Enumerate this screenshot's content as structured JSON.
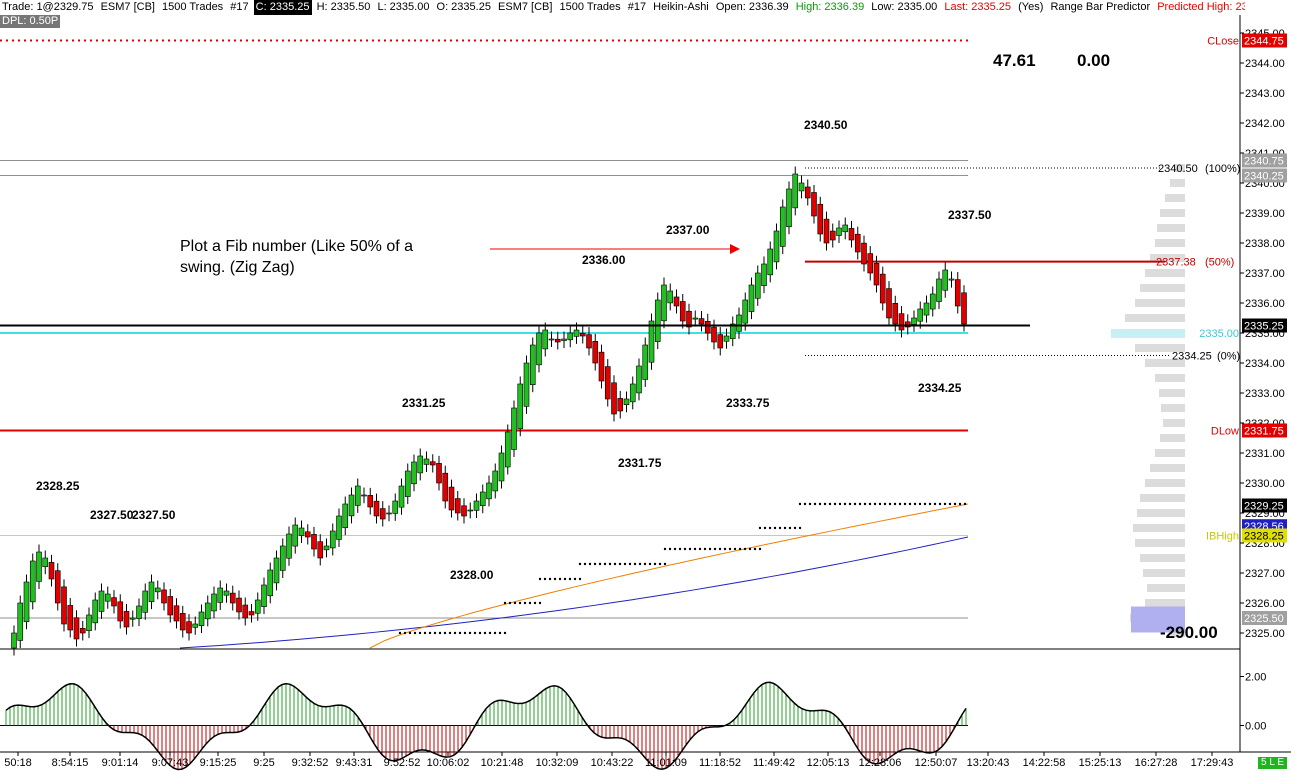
{
  "header": {
    "trade": "Trade: 1@2329.75",
    "symbol": "ESM7 [CB]",
    "trades": "1500 Trades",
    "study_no": "#17",
    "close": "C: 2335.25",
    "high": "H: 2335.50",
    "low": "L: 2335.00",
    "open": "O: 2335.25",
    "symbol2": "ESM7 [CB]",
    "trades2": "1500 Trades",
    "study2": "#17",
    "study_name": "Heikin-Ashi",
    "ha_open": "Open: 2336.39",
    "ha_high": "High: 2336.39",
    "ha_low": "Low: 2335.00",
    "ha_last": "Last: 2335.25",
    "yes": "(Yes)",
    "predictor": "Range Bar Predictor",
    "predicted": "Predicted High: 23"
  },
  "dpl": "DPL: 0.50P",
  "corner_badge": "5 L E",
  "colors": {
    "up": "#20c020",
    "down": "#e00000",
    "red_line": "#e00000",
    "cyan_line": "#40e0e0",
    "ibhigh": "#e0e000",
    "blue_ma": "#2020c0",
    "orange_ma": "#f08000",
    "price_black": "#000000",
    "axis_label_gray": "#a0a0a0",
    "profile": "#dcdcdc"
  },
  "chart_data": {
    "type": "candlestick",
    "chart_style": "Heikin-Ashi",
    "y_range": [
      2324.5,
      2345.5
    ],
    "x_labels": [
      "50:18",
      "8:54:15",
      "9:01:14",
      "9:07:43",
      "9:15:25",
      "9:25",
      "9:32:52",
      "9:43:31",
      "9:52:52",
      "10:06:02",
      "10:21:48",
      "10:32:09",
      "10:43:22",
      "11:01:09",
      "11:18:52",
      "11:49:42",
      "12:05:13",
      "12:28:06",
      "12:50:07",
      "13:20:43",
      "14:22:58",
      "15:25:13",
      "16:27:28",
      "17:29:43"
    ],
    "y_ticks": [
      "2325.00",
      "2326.00",
      "2327.00",
      "2328.00",
      "2329.00",
      "2330.00",
      "2331.00",
      "2332.00",
      "2333.00",
      "2334.00",
      "2335.00",
      "2336.00",
      "2337.00",
      "2338.00",
      "2339.00",
      "2340.00",
      "2341.00",
      "2342.00",
      "2343.00",
      "2344.00",
      "2345.00"
    ],
    "closes": [
      2325.0,
      2326.0,
      2326.7,
      2327.4,
      2327.7,
      2327.5,
      2326.8,
      2326.0,
      2325.3,
      2325.1,
      2324.8,
      2325.0,
      2325.6,
      2326.1,
      2326.4,
      2326.3,
      2325.9,
      2325.4,
      2325.2,
      2325.5,
      2325.9,
      2326.4,
      2326.7,
      2326.5,
      2326.0,
      2325.6,
      2325.4,
      2325.1,
      2325.0,
      2325.3,
      2325.7,
      2326.0,
      2326.3,
      2326.5,
      2326.4,
      2326.0,
      2325.7,
      2325.5,
      2325.6,
      2326.1,
      2326.6,
      2327.1,
      2327.5,
      2327.9,
      2328.3,
      2328.6,
      2328.5,
      2328.2,
      2327.8,
      2327.5,
      2327.9,
      2328.4,
      2328.9,
      2329.3,
      2329.6,
      2329.9,
      2329.6,
      2329.2,
      2328.9,
      2328.8,
      2329.0,
      2329.4,
      2329.9,
      2330.4,
      2330.7,
      2330.9,
      2330.8,
      2330.6,
      2330.0,
      2329.4,
      2329.1,
      2329.0,
      2328.9,
      2329.1,
      2329.4,
      2329.7,
      2330.0,
      2330.4,
      2331.0,
      2331.7,
      2332.5,
      2333.3,
      2334.0,
      2334.6,
      2335.0,
      2335.1,
      2334.8,
      2334.7,
      2334.8,
      2335.0,
      2335.1,
      2334.9,
      2334.5,
      2334.0,
      2333.4,
      2332.8,
      2332.3,
      2332.4,
      2332.8,
      2333.3,
      2333.9,
      2334.6,
      2335.4,
      2336.1,
      2336.6,
      2336.4,
      2335.9,
      2335.4,
      2335.2,
      2335.5,
      2335.3,
      2335.0,
      2334.7,
      2334.5,
      2334.9,
      2335.3,
      2335.6,
      2336.1,
      2336.6,
      2337.0,
      2337.3,
      2337.8,
      2338.4,
      2339.2,
      2339.8,
      2340.3,
      2340.0,
      2339.5,
      2338.9,
      2338.3,
      2338.0,
      2338.1,
      2338.5,
      2338.6,
      2338.1,
      2337.7,
      2337.3,
      2337.0,
      2336.6,
      2336.0,
      2335.5,
      2335.3,
      2335.1,
      2335.2,
      2335.5,
      2335.8,
      2336.0,
      2336.3,
      2336.8,
      2337.1,
      2336.8,
      2335.9,
      2335.3
    ],
    "horizontal_lines": [
      {
        "label": "CLose",
        "value": "2344.75",
        "style": "dotted"
      },
      {
        "label": "",
        "value": "2340.75"
      },
      {
        "label": "",
        "value": "2340.25"
      },
      {
        "label": "",
        "value": "2335.25"
      },
      {
        "label": "2335.00",
        "value": ""
      },
      {
        "label": "DLow",
        "value": "2331.75"
      },
      {
        "label": "",
        "value": "2329.25"
      },
      {
        "label": "",
        "value": "2328.56"
      },
      {
        "label": "IBHigh",
        "value": "2328.25"
      },
      {
        "label": "",
        "value": "2325.50"
      }
    ],
    "fib": [
      {
        "price": "2340.50",
        "pct": "(100%)"
      },
      {
        "price": "2337.38",
        "pct": "(50%)"
      },
      {
        "price": "2334.25",
        "pct": "(0%)"
      }
    ],
    "swing_labels": [
      "2328.25",
      "2327.50",
      "2327.50",
      "2328.00",
      "2331.25",
      "2331.75",
      "2336.00",
      "2337.00",
      "2333.75",
      "2340.50",
      "2337.50",
      "2334.25"
    ],
    "annotation": [
      "Plot a Fib number (Like 50% of a",
      "swing. (Zig Zag)"
    ],
    "stats": [
      "47.61",
      "0.00"
    ],
    "profile_value": "-290.00",
    "oscillator": {
      "y_ticks": [
        "2.00",
        "0.00"
      ],
      "range": [
        -1.0,
        3.0
      ]
    }
  }
}
